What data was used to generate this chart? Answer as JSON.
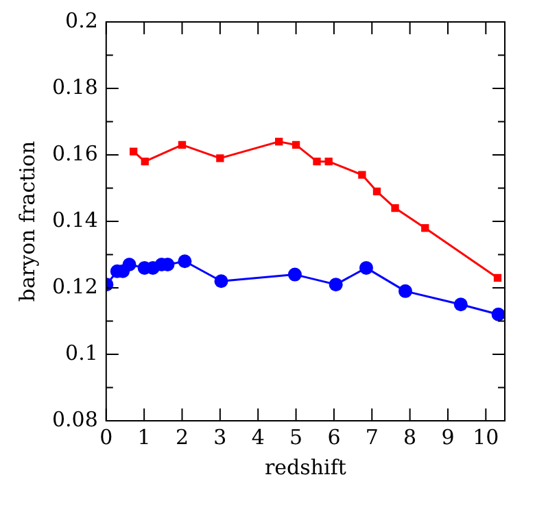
{
  "chart_data": {
    "type": "line",
    "xlabel": "redshift",
    "ylabel": "baryon fraction",
    "xlim": [
      0,
      10.5
    ],
    "xticks": [
      0,
      1,
      2,
      3,
      4,
      5,
      6,
      7,
      8,
      9,
      10
    ],
    "ylim": [
      0.08,
      0.2
    ],
    "yticks": [
      0.08,
      {
        "value": 0.09,
        "label": null
      },
      0.1,
      {
        "value": 0.11,
        "label": null
      },
      0.12,
      {
        "value": 0.13,
        "label": null
      },
      0.14,
      {
        "value": 0.15,
        "label": null
      },
      0.16,
      {
        "value": 0.17,
        "label": null
      },
      0.18,
      {
        "value": 0.19,
        "label": null
      },
      0.2
    ],
    "grid": false,
    "legend": false,
    "line_style": "solid",
    "series": [
      {
        "color": "#ff0000",
        "marker": "square",
        "x": [
          0.72,
          1.02,
          2.0,
          3.0,
          4.55,
          5.0,
          5.55,
          5.86,
          6.74,
          7.13,
          7.61,
          8.4,
          10.31
        ],
        "values": [
          0.161,
          0.158,
          0.163,
          0.159,
          0.164,
          0.163,
          0.158,
          0.158,
          0.154,
          0.149,
          0.144,
          0.138,
          0.123
        ]
      },
      {
        "color": "#0000ff",
        "marker": "circle",
        "x": [
          0.01,
          0.29,
          0.44,
          0.61,
          1.01,
          1.23,
          1.46,
          1.62,
          2.07,
          3.03,
          4.97,
          6.05,
          6.85,
          7.88,
          9.34,
          10.33
        ],
        "values": [
          0.121,
          0.125,
          0.125,
          0.127,
          0.126,
          0.126,
          0.127,
          0.127,
          0.128,
          0.122,
          0.124,
          0.121,
          0.126,
          0.119,
          0.115,
          0.112
        ]
      }
    ]
  }
}
